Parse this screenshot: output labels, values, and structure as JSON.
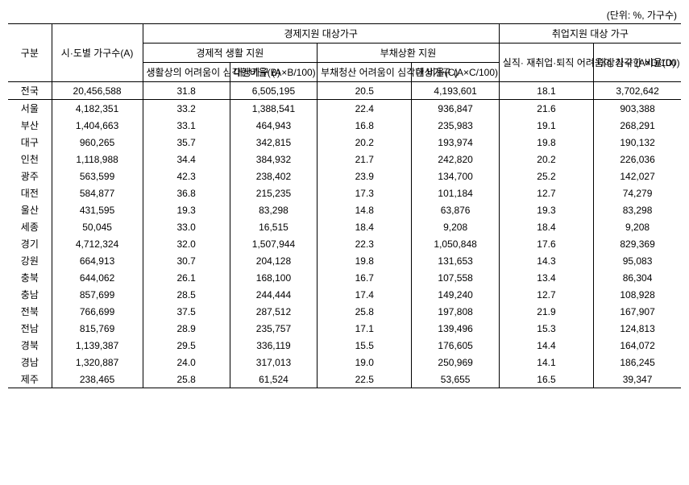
{
  "unit": "(단위: %, 가구수)",
  "headers": {
    "h1_division": "구분",
    "h1_A": "시·도별 가구수(A)",
    "h1_econ": "경제지원 대상가구",
    "h1_job": "취업지원 대상 가구",
    "h2_econ_life": "경제적 생활 지원",
    "h2_debt": "부채상환 지원",
    "h3_B": "생활상의 어려움이 심각한비율(B)",
    "h3_AB": "대상가구 (A×B/100)",
    "h3_C": "부채청산 어려움이 심각한 비율(C)",
    "h3_AC": "대상가구 (A×C/100)",
    "h3_D": "실직· 재취업·퇴직 어려움이 심각한 비율(D)",
    "h3_AD": "대상가구 (A×D/100)"
  },
  "rows": [
    {
      "region": "전국",
      "A": "20,456,588",
      "B": "31.8",
      "AB": "6,505,195",
      "C": "20.5",
      "AC": "4,193,601",
      "D": "18.1",
      "AD": "3,702,642"
    },
    {
      "region": "서울",
      "A": "4,182,351",
      "B": "33.2",
      "AB": "1,388,541",
      "C": "22.4",
      "AC": "936,847",
      "D": "21.6",
      "AD": "903,388"
    },
    {
      "region": "부산",
      "A": "1,404,663",
      "B": "33.1",
      "AB": "464,943",
      "C": "16.8",
      "AC": "235,983",
      "D": "19.1",
      "AD": "268,291"
    },
    {
      "region": "대구",
      "A": "960,265",
      "B": "35.7",
      "AB": "342,815",
      "C": "20.2",
      "AC": "193,974",
      "D": "19.8",
      "AD": "190,132"
    },
    {
      "region": "인천",
      "A": "1,118,988",
      "B": "34.4",
      "AB": "384,932",
      "C": "21.7",
      "AC": "242,820",
      "D": "20.2",
      "AD": "226,036"
    },
    {
      "region": "광주",
      "A": "563,599",
      "B": "42.3",
      "AB": "238,402",
      "C": "23.9",
      "AC": "134,700",
      "D": "25.2",
      "AD": "142,027"
    },
    {
      "region": "대전",
      "A": "584,877",
      "B": "36.8",
      "AB": "215,235",
      "C": "17.3",
      "AC": "101,184",
      "D": "12.7",
      "AD": "74,279"
    },
    {
      "region": "울산",
      "A": "431,595",
      "B": "19.3",
      "AB": "83,298",
      "C": "14.8",
      "AC": "63,876",
      "D": "19.3",
      "AD": "83,298"
    },
    {
      "region": "세종",
      "A": "50,045",
      "B": "33.0",
      "AB": "16,515",
      "C": "18.4",
      "AC": "9,208",
      "D": "18.4",
      "AD": "9,208"
    },
    {
      "region": "경기",
      "A": "4,712,324",
      "B": "32.0",
      "AB": "1,507,944",
      "C": "22.3",
      "AC": "1,050,848",
      "D": "17.6",
      "AD": "829,369"
    },
    {
      "region": "강원",
      "A": "664,913",
      "B": "30.7",
      "AB": "204,128",
      "C": "19.8",
      "AC": "131,653",
      "D": "14.3",
      "AD": "95,083"
    },
    {
      "region": "충북",
      "A": "644,062",
      "B": "26.1",
      "AB": "168,100",
      "C": "16.7",
      "AC": "107,558",
      "D": "13.4",
      "AD": "86,304"
    },
    {
      "region": "충남",
      "A": "857,699",
      "B": "28.5",
      "AB": "244,444",
      "C": "17.4",
      "AC": "149,240",
      "D": "12.7",
      "AD": "108,928"
    },
    {
      "region": "전북",
      "A": "766,699",
      "B": "37.5",
      "AB": "287,512",
      "C": "25.8",
      "AC": "197,808",
      "D": "21.9",
      "AD": "167,907"
    },
    {
      "region": "전남",
      "A": "815,769",
      "B": "28.9",
      "AB": "235,757",
      "C": "17.1",
      "AC": "139,496",
      "D": "15.3",
      "AD": "124,813"
    },
    {
      "region": "경북",
      "A": "1,139,387",
      "B": "29.5",
      "AB": "336,119",
      "C": "15.5",
      "AC": "176,605",
      "D": "14.4",
      "AD": "164,072"
    },
    {
      "region": "경남",
      "A": "1,320,887",
      "B": "24.0",
      "AB": "317,013",
      "C": "19.0",
      "AC": "250,969",
      "D": "14.1",
      "AD": "186,245"
    },
    {
      "region": "제주",
      "A": "238,465",
      "B": "25.8",
      "AB": "61,524",
      "C": "22.5",
      "AC": "53,655",
      "D": "16.5",
      "AD": "39,347"
    }
  ]
}
